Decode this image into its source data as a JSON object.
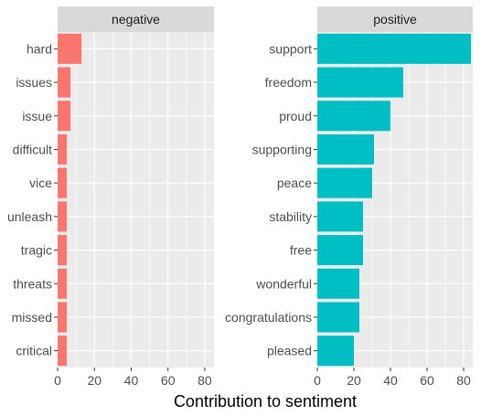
{
  "chart_data": {
    "type": "bar",
    "orientation": "horizontal",
    "xlabel": "Contribution to sentiment",
    "xlim": [
      0,
      85
    ],
    "xticks": [
      0,
      20,
      40,
      60,
      80
    ],
    "grid": true,
    "panels": [
      {
        "name": "negative",
        "color": "#F8766D",
        "categories": [
          "hard",
          "issues",
          "issue",
          "difficult",
          "vice",
          "unleash",
          "tragic",
          "threats",
          "missed",
          "critical"
        ],
        "values": [
          13,
          7,
          7,
          5,
          5,
          5,
          5,
          5,
          5,
          5
        ]
      },
      {
        "name": "positive",
        "color": "#00BFC4",
        "categories": [
          "support",
          "freedom",
          "proud",
          "supporting",
          "peace",
          "stability",
          "free",
          "wonderful",
          "congratulations",
          "pleased"
        ],
        "values": [
          84,
          47,
          40,
          31,
          30,
          25,
          25,
          23,
          23,
          20
        ]
      }
    ]
  }
}
